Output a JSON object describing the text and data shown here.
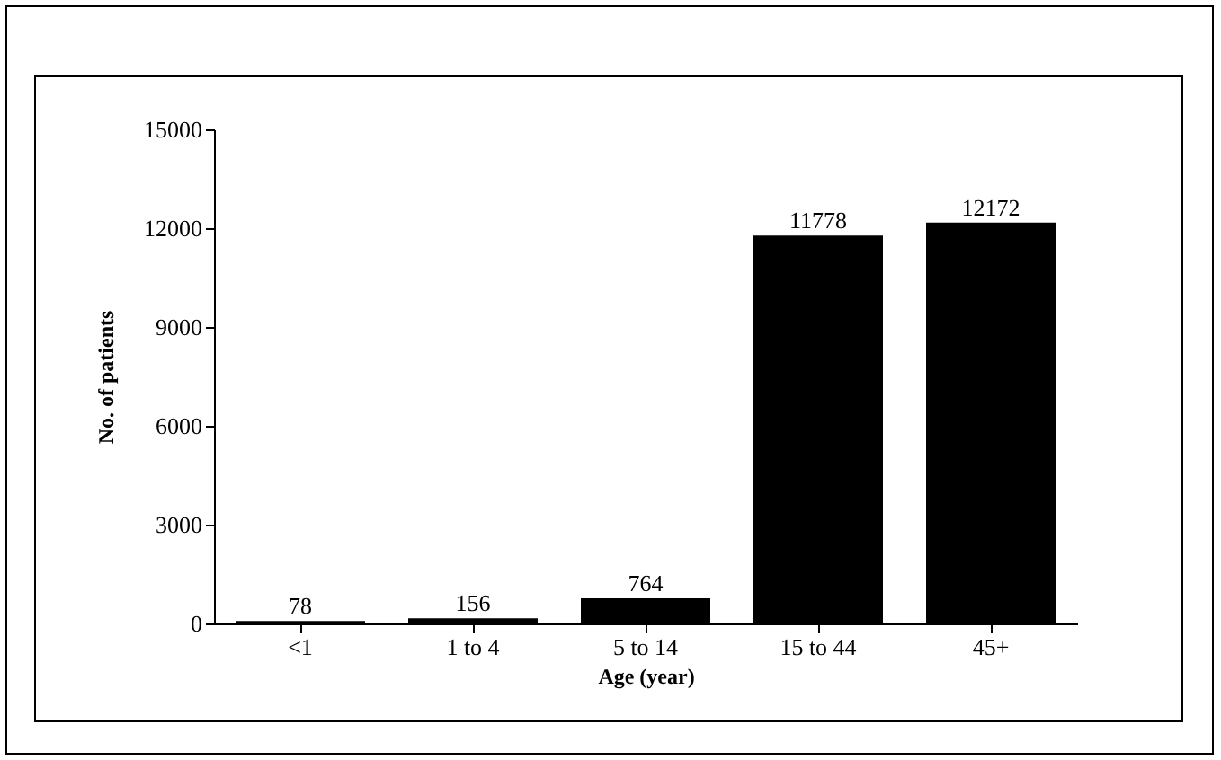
{
  "chart_data": {
    "type": "bar",
    "xlabel": "Age (year)",
    "ylabel": "No. of patients",
    "categories": [
      "<1",
      "1 to 4",
      "5 to 14",
      "15 to 44",
      "45+"
    ],
    "values": [
      78,
      156,
      764,
      11778,
      12172
    ],
    "color": "#000000",
    "ylim": [
      0,
      15000
    ],
    "yticks": [
      0,
      3000,
      6000,
      9000,
      12000,
      15000
    ],
    "grid": false,
    "data_labels": true
  }
}
